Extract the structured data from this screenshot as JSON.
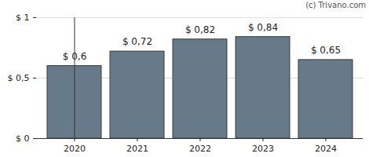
{
  "chart_data": {
    "type": "bar",
    "annotations": [
      "(c) Trivano.com"
    ],
    "categories": [
      "2020",
      "2021",
      "2022",
      "2023",
      "2024"
    ],
    "values": [
      0.6,
      0.72,
      0.82,
      0.84,
      0.65
    ],
    "value_labels": [
      "$ 0,6",
      "$ 0,72",
      "$ 0,82",
      "$ 0,84",
      "$ 0,65"
    ],
    "data_labels": true,
    "color": "#667a8a",
    "ylim": [
      0,
      1
    ],
    "yticks": [
      {
        "value": 0,
        "label": "$ 0"
      },
      {
        "value": 0.5,
        "label": "$ 0,5"
      },
      {
        "value": 1,
        "label": "$ 1"
      }
    ],
    "grid": true
  }
}
